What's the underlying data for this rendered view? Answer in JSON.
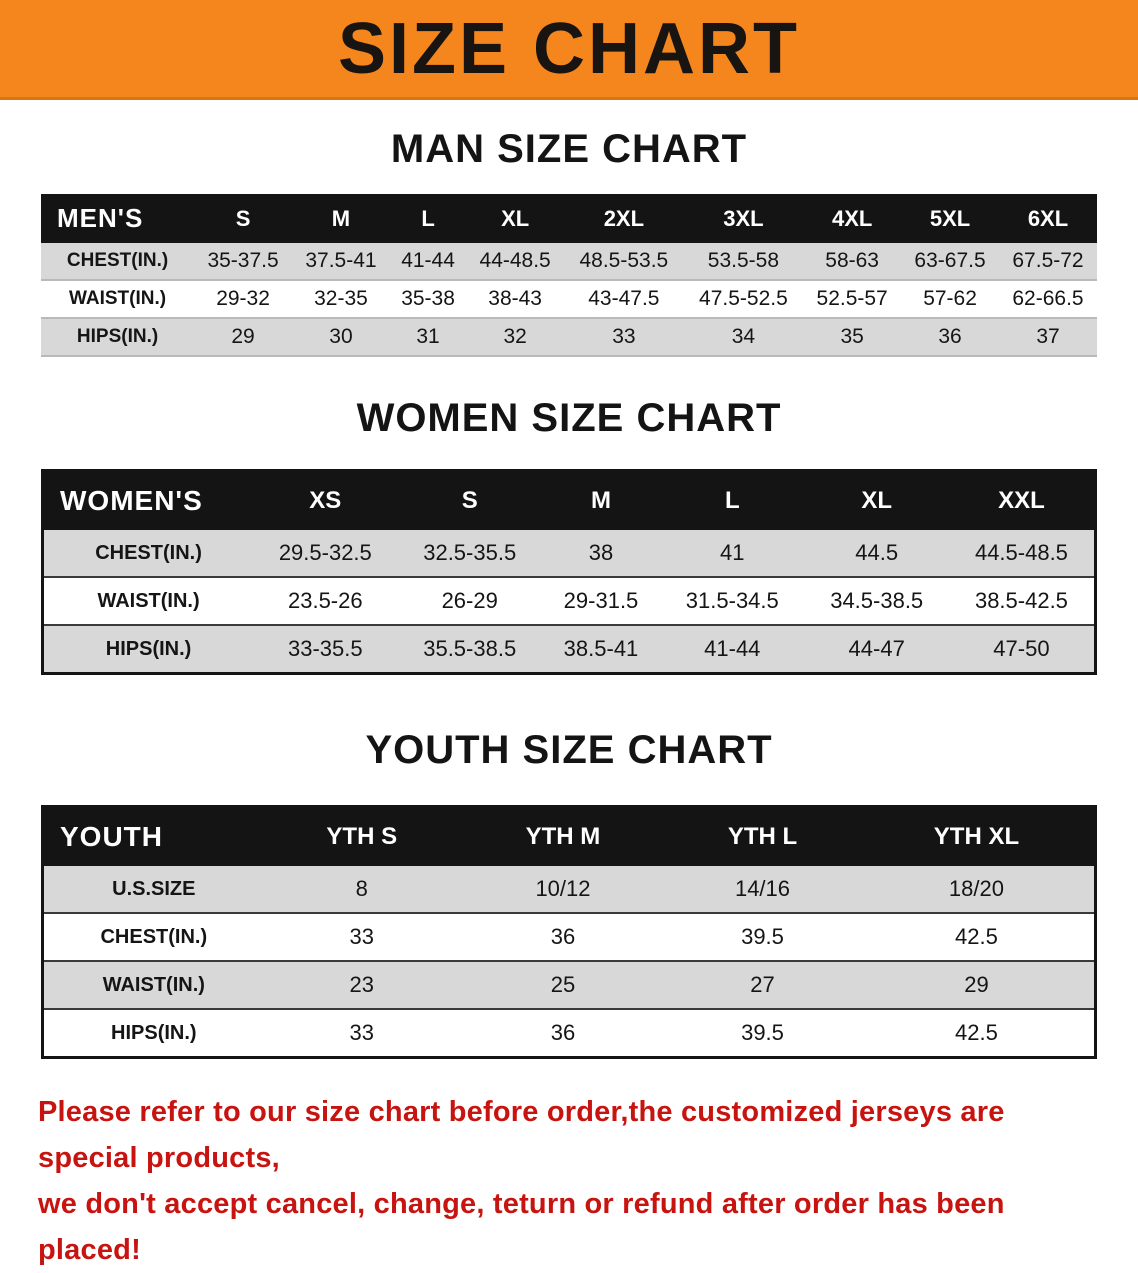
{
  "banner": {
    "title": "SIZE CHART",
    "bg_color": "#f5861d"
  },
  "sections": [
    {
      "heading": "MAN SIZE CHART",
      "table": {
        "header": [
          "MEN'S",
          "S",
          "M",
          "L",
          "XL",
          "2XL",
          "3XL",
          "4XL",
          "5XL",
          "6XL"
        ],
        "rows": [
          [
            "CHEST(IN.)",
            "35-37.5",
            "37.5-41",
            "41-44",
            "44-48.5",
            "48.5-53.5",
            "53.5-58",
            "58-63",
            "63-67.5",
            "67.5-72"
          ],
          [
            "WAIST(IN.)",
            "29-32",
            "32-35",
            "35-38",
            "38-43",
            "43-47.5",
            "47.5-52.5",
            "52.5-57",
            "57-62",
            "62-66.5"
          ],
          [
            "HIPS(IN.)",
            "29",
            "30",
            "31",
            "32",
            "33",
            "34",
            "35",
            "36",
            "37"
          ]
        ]
      }
    },
    {
      "heading": "WOMEN SIZE CHART",
      "table": {
        "header": [
          "WOMEN'S",
          "XS",
          "S",
          "M",
          "L",
          "XL",
          "XXL"
        ],
        "rows": [
          [
            "CHEST(IN.)",
            "29.5-32.5",
            "32.5-35.5",
            "38",
            "41",
            "44.5",
            "44.5-48.5"
          ],
          [
            "WAIST(IN.)",
            "23.5-26",
            "26-29",
            "29-31.5",
            "31.5-34.5",
            "34.5-38.5",
            "38.5-42.5"
          ],
          [
            "HIPS(IN.)",
            "33-35.5",
            "35.5-38.5",
            "38.5-41",
            "41-44",
            "44-47",
            "47-50"
          ]
        ]
      }
    },
    {
      "heading": "YOUTH SIZE CHART",
      "table": {
        "header": [
          "YOUTH",
          "YTH S",
          "YTH M",
          "YTH L",
          "YTH XL"
        ],
        "rows": [
          [
            "U.S.SIZE",
            "8",
            "10/12",
            "14/16",
            "18/20"
          ],
          [
            "CHEST(IN.)",
            "33",
            "36",
            "39.5",
            "42.5"
          ],
          [
            "WAIST(IN.)",
            "23",
            "25",
            "27",
            "29"
          ],
          [
            "HIPS(IN.)",
            "33",
            "36",
            "39.5",
            "42.5"
          ]
        ]
      }
    }
  ],
  "notice": {
    "line1": "Please refer to our size chart before order,the customized jerseys are special products,",
    "line2": "we don't accept cancel, change, teturn or refund after order has been placed!",
    "color": "#c81410"
  }
}
